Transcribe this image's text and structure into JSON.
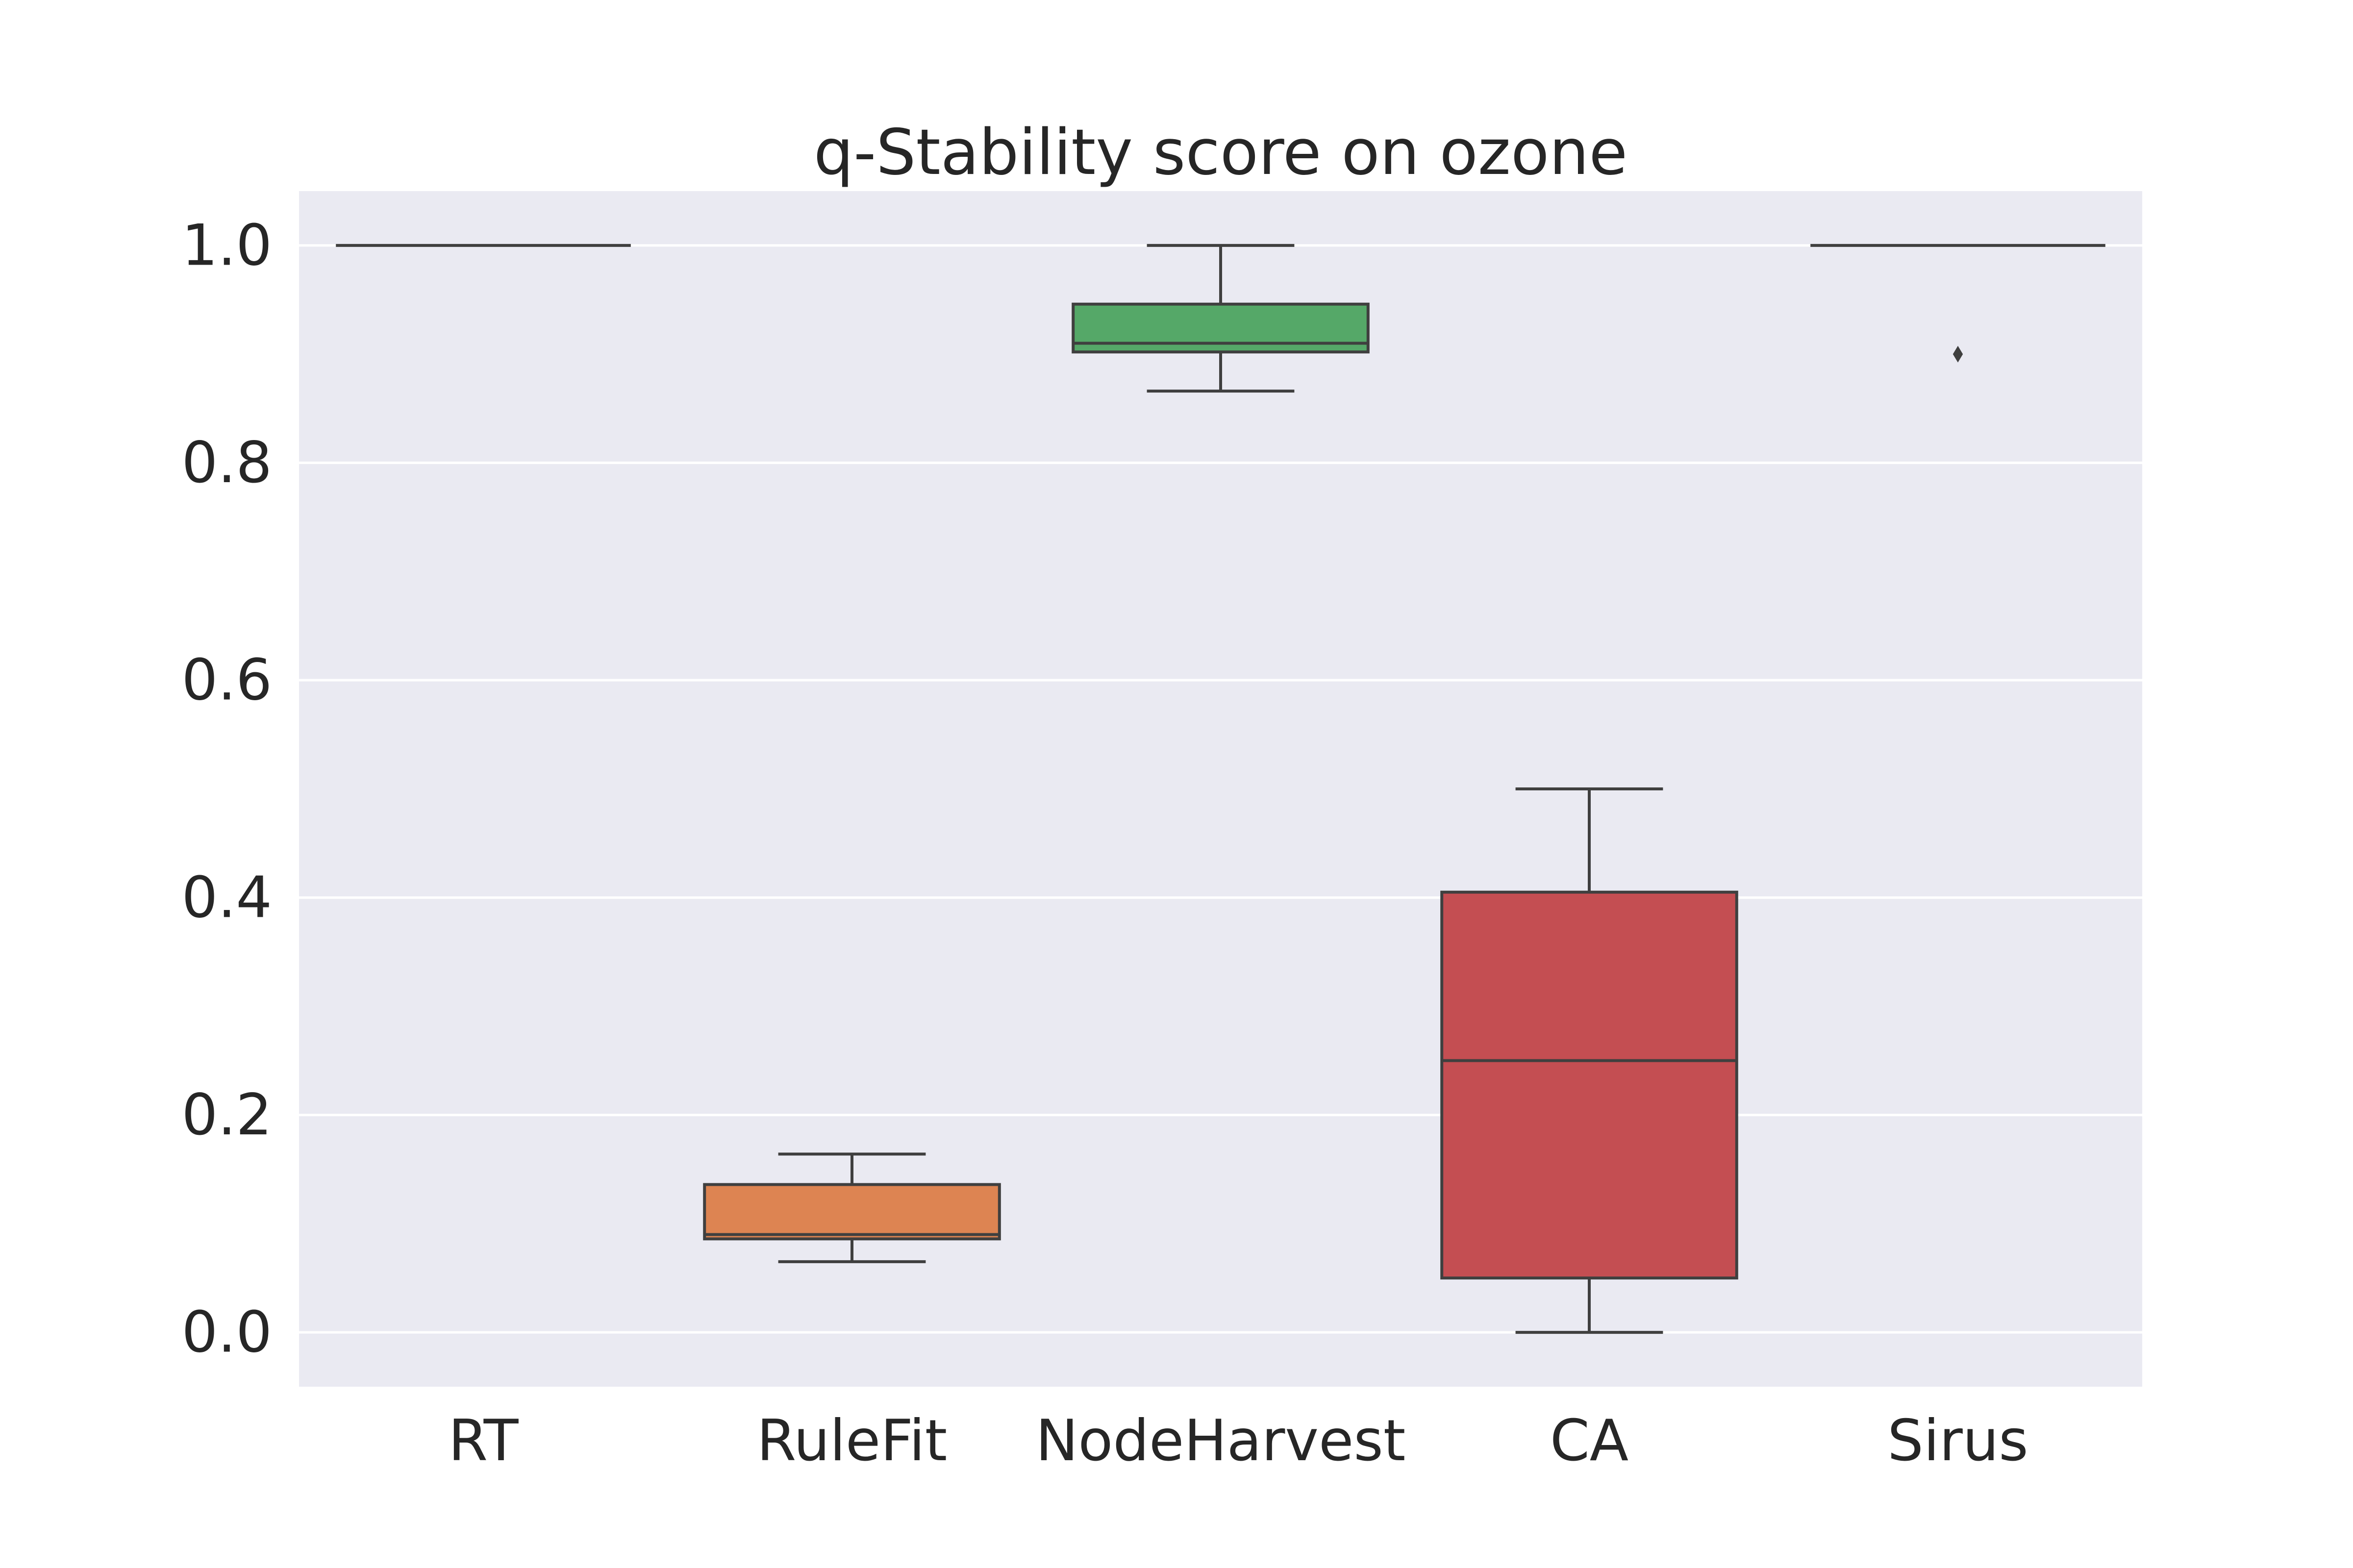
{
  "chart_data": {
    "type": "box",
    "title": "q-Stability score on ozone",
    "xlabel": "",
    "ylabel": "",
    "ylim": [
      -0.05,
      1.05
    ],
    "yticks": [
      0.0,
      0.2,
      0.4,
      0.6,
      0.8,
      1.0
    ],
    "ytick_labels": [
      "0.0",
      "0.2",
      "0.4",
      "0.6",
      "0.8",
      "1.0"
    ],
    "grid": true,
    "categories": [
      "RT",
      "RuleFit",
      "NodeHarvest",
      "CA",
      "Sirus"
    ],
    "boxes": [
      {
        "category": "RT",
        "whisker_low": 1.0,
        "q1": 1.0,
        "median": 1.0,
        "q3": 1.0,
        "whisker_high": 1.0,
        "outliers": [],
        "color": "#4c72b0"
      },
      {
        "category": "RuleFit",
        "whisker_low": 0.065,
        "q1": 0.086,
        "median": 0.09,
        "q3": 0.136,
        "whisker_high": 0.164,
        "outliers": [],
        "color": "#dd8452"
      },
      {
        "category": "NodeHarvest",
        "whisker_low": 0.866,
        "q1": 0.902,
        "median": 0.91,
        "q3": 0.946,
        "whisker_high": 1.0,
        "outliers": [],
        "color": "#55a868"
      },
      {
        "category": "CA",
        "whisker_low": 0.0,
        "q1": 0.05,
        "median": 0.25,
        "q3": 0.405,
        "whisker_high": 0.5,
        "outliers": [],
        "color": "#c44e52"
      },
      {
        "category": "Sirus",
        "whisker_low": 1.0,
        "q1": 1.0,
        "median": 1.0,
        "q3": 1.0,
        "whisker_high": 1.0,
        "outliers": [
          0.9
        ],
        "color": "#8172b3"
      }
    ],
    "colors": {
      "plot_background": "#eaeaf2",
      "grid": "#ffffff",
      "box_edge": "#3f3f3f",
      "text": "#262626"
    }
  }
}
